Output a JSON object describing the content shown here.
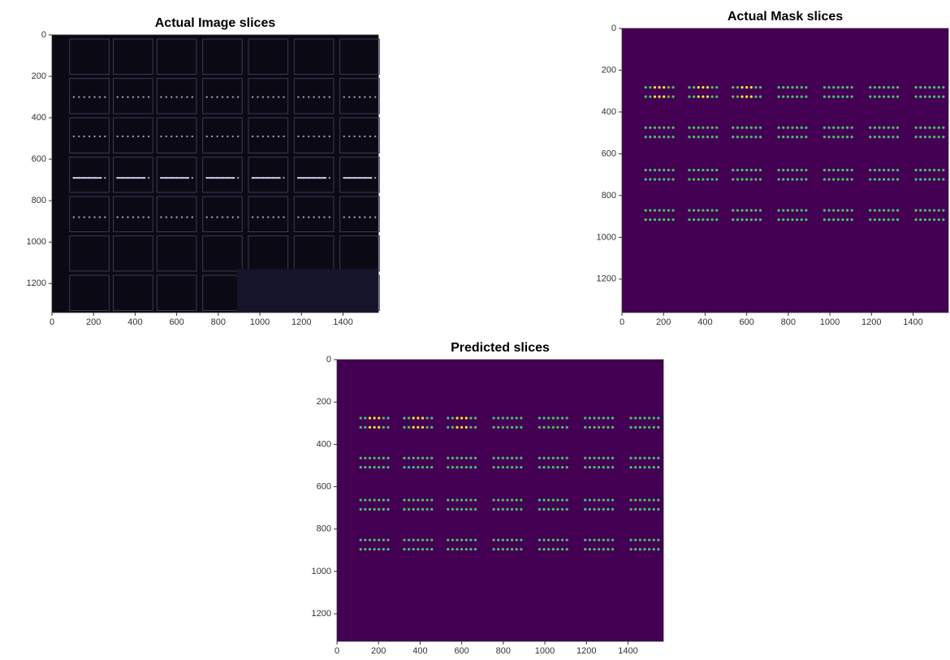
{
  "chart_data": [
    {
      "type": "image",
      "title": "Actual Image slices",
      "xlim": [
        0,
        1570
      ],
      "ylim": [
        1340,
        0
      ],
      "xticks": [
        0,
        200,
        400,
        600,
        800,
        1000,
        1200,
        1400
      ],
      "yticks": [
        0,
        200,
        400,
        600,
        800,
        1000,
        1200
      ]
    },
    {
      "type": "image",
      "title": "Actual Mask slices",
      "xlim": [
        0,
        1570
      ],
      "ylim": [
        1360,
        0
      ],
      "xticks": [
        0,
        200,
        400,
        600,
        800,
        1000,
        1200,
        1400
      ],
      "yticks": [
        0,
        200,
        400,
        600,
        800,
        1000,
        1200
      ]
    },
    {
      "type": "image",
      "title": "Predicted slices",
      "xlim": [
        0,
        1570
      ],
      "ylim": [
        1330,
        0
      ],
      "xticks": [
        0,
        200,
        400,
        600,
        800,
        1000,
        1200,
        1400
      ],
      "yticks": [
        0,
        200,
        400,
        600,
        800,
        1000,
        1200
      ]
    }
  ]
}
